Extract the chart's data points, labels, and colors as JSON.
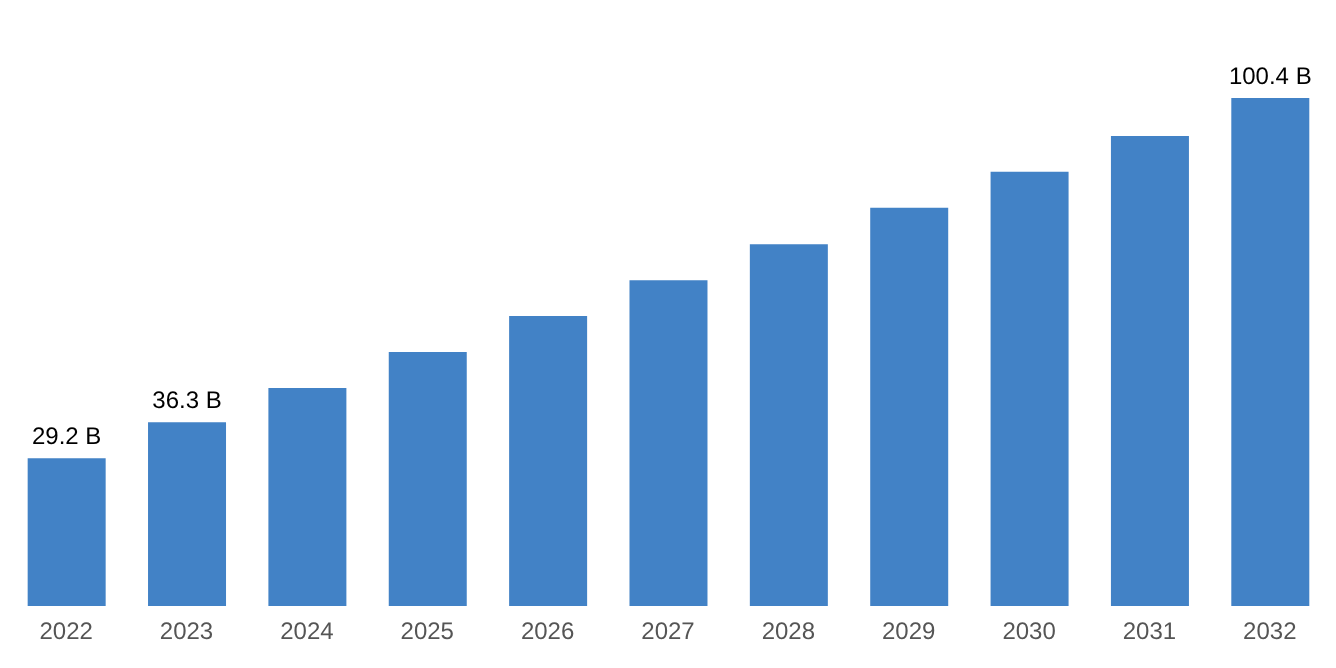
{
  "chart_data": {
    "type": "bar",
    "categories": [
      "2022",
      "2023",
      "2024",
      "2025",
      "2026",
      "2027",
      "2028",
      "2029",
      "2030",
      "2031",
      "2032"
    ],
    "values": [
      29.2,
      36.3,
      43.1,
      50.2,
      57.3,
      64.4,
      71.5,
      78.7,
      85.8,
      92.9,
      100.4
    ],
    "value_labels": [
      "29.2 B",
      "36.3 B",
      null,
      null,
      null,
      null,
      null,
      null,
      null,
      null,
      "100.4 B"
    ],
    "color": "#4282c6",
    "grid": false,
    "legend": false
  }
}
